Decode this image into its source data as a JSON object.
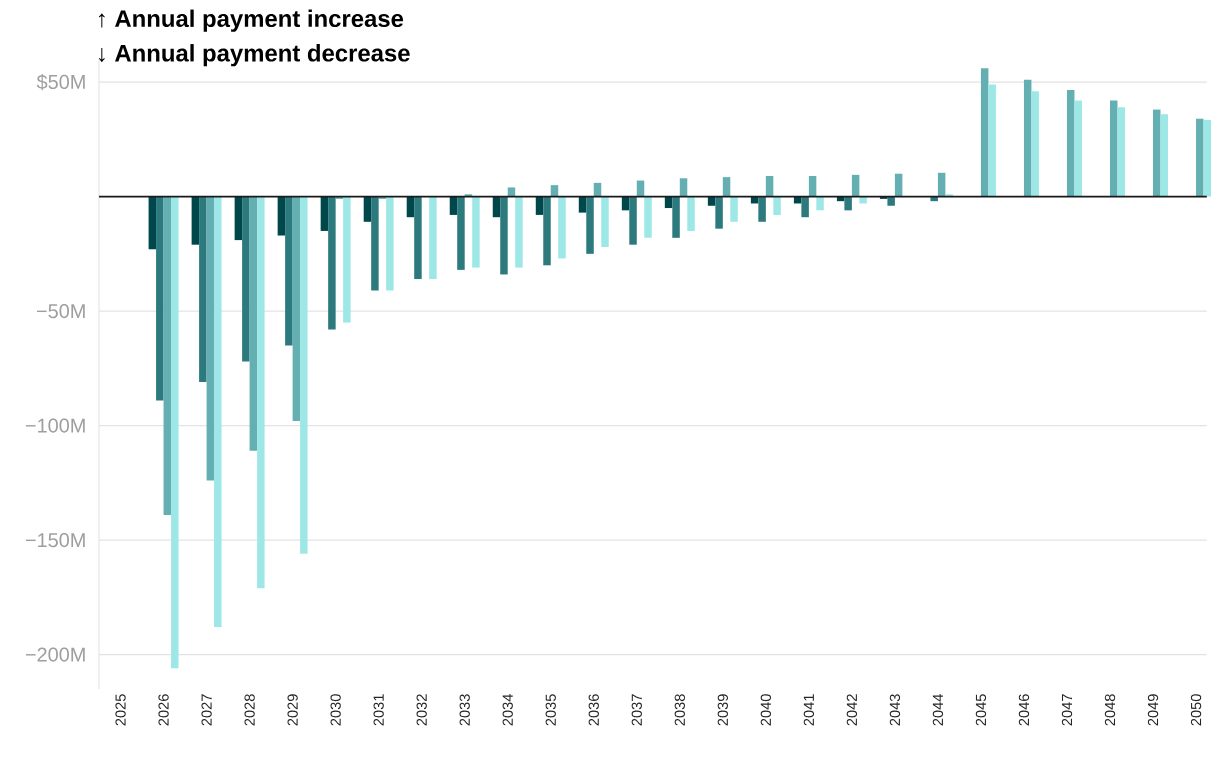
{
  "chart_data": {
    "type": "bar",
    "title": "↑ Annual payment increase",
    "subtitle": "↓ Annual payment decrease",
    "categories": [
      "2025",
      "2026",
      "2027",
      "2028",
      "2029",
      "2030",
      "2031",
      "2032",
      "2033",
      "2034",
      "2035",
      "2036",
      "2037",
      "2038",
      "2039",
      "2040",
      "2041",
      "2042",
      "2043",
      "2044",
      "2045",
      "2046",
      "2047",
      "2048",
      "2049",
      "2050"
    ],
    "series": [
      {
        "color": "#00474b",
        "values": [
          null,
          -23,
          -21,
          -19,
          -17,
          -15,
          -11,
          -9,
          -8,
          -9,
          -8,
          -7,
          -6,
          -5,
          -4,
          -3,
          -3,
          -2,
          -1,
          null,
          null,
          null,
          null,
          null,
          null,
          null
        ]
      },
      {
        "color": "#2c7a7e",
        "values": [
          null,
          -89,
          -81,
          -72,
          -65,
          -58,
          -41,
          -36,
          -32,
          -34,
          -30,
          -25,
          -21,
          -18,
          -14,
          -11,
          -9,
          -6,
          -4,
          -2,
          null,
          null,
          null,
          null,
          null,
          null
        ]
      },
      {
        "color": "#64afb1",
        "values": [
          null,
          -139,
          -124,
          -111,
          -98,
          -1,
          -1,
          null,
          1,
          4,
          5,
          6,
          7,
          8,
          8.5,
          9,
          9,
          9.5,
          10,
          10.4,
          56,
          51,
          46.5,
          42,
          38,
          34
        ]
      },
      {
        "color": "#9de7e6",
        "values": [
          null,
          -206,
          -188,
          -171,
          -156,
          -55,
          -41,
          -36,
          -31,
          -31,
          -27,
          -22,
          -18,
          -15,
          -11,
          -8,
          -6,
          -3,
          null,
          1,
          49,
          46,
          42,
          39,
          36,
          33.5
        ]
      }
    ],
    "ylim": [
      -215,
      60
    ],
    "yticks": [
      {
        "value": 50,
        "label": "$50M"
      },
      {
        "value": 0,
        "label": null
      },
      {
        "value": -50,
        "label": "−50M"
      },
      {
        "value": -100,
        "label": "−100M"
      },
      {
        "value": -150,
        "label": "−150M"
      },
      {
        "value": -200,
        "label": "−200M"
      }
    ],
    "grid": "y",
    "ref_lines": [
      {
        "axis": "y",
        "value": 0,
        "color": "#1a1a1a"
      }
    ]
  }
}
